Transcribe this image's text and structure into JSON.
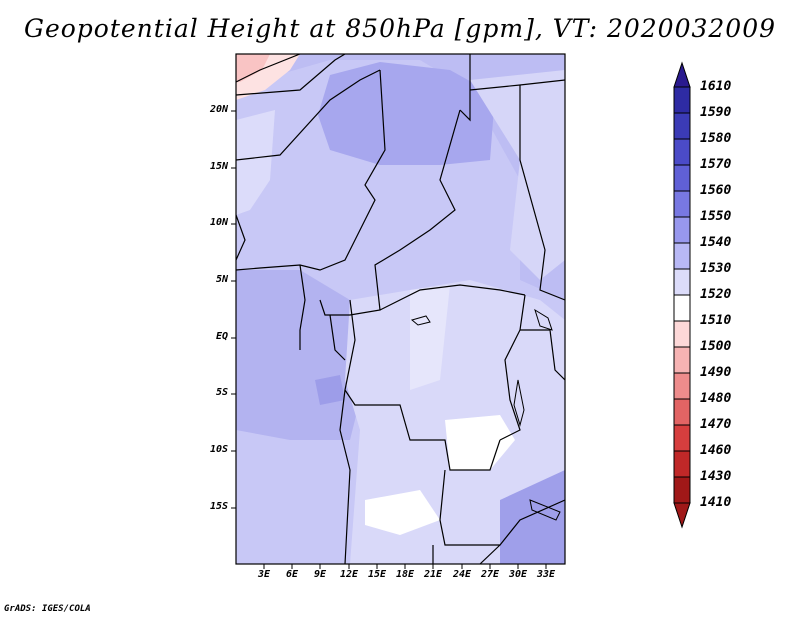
{
  "title": "Geopotential Height at 850hPa [gpm], VT: 2020032009",
  "credit": "GrADS: IGES/COLA",
  "map": {
    "variable": "Geopotential Height at 850hPa",
    "units": "gpm",
    "valid_time": "2020032009",
    "lon_labels": [
      "3E",
      "6E",
      "9E",
      "12E",
      "15E",
      "18E",
      "21E",
      "24E",
      "27E",
      "30E",
      "33E"
    ],
    "lat_labels": [
      "20N",
      "15N",
      "10N",
      "5N",
      "EQ",
      "5S",
      "10S",
      "15S"
    ]
  },
  "colorbar": {
    "levels": [
      "1610",
      "1590",
      "1580",
      "1570",
      "1560",
      "1550",
      "1540",
      "1530",
      "1520",
      "1510",
      "1500",
      "1490",
      "1480",
      "1470",
      "1460",
      "1430",
      "1410"
    ],
    "colors": [
      "#2a1a8f",
      "#2e2ba3",
      "#3b3bb6",
      "#4b4bc8",
      "#6060d6",
      "#7878e2",
      "#9898ee",
      "#b8b8f5",
      "#dcdcfa",
      "#ffffff",
      "#fdd8d8",
      "#f6b3b3",
      "#ee8c8c",
      "#e26464",
      "#d63e3e",
      "#c02828",
      "#a01818"
    ]
  }
}
